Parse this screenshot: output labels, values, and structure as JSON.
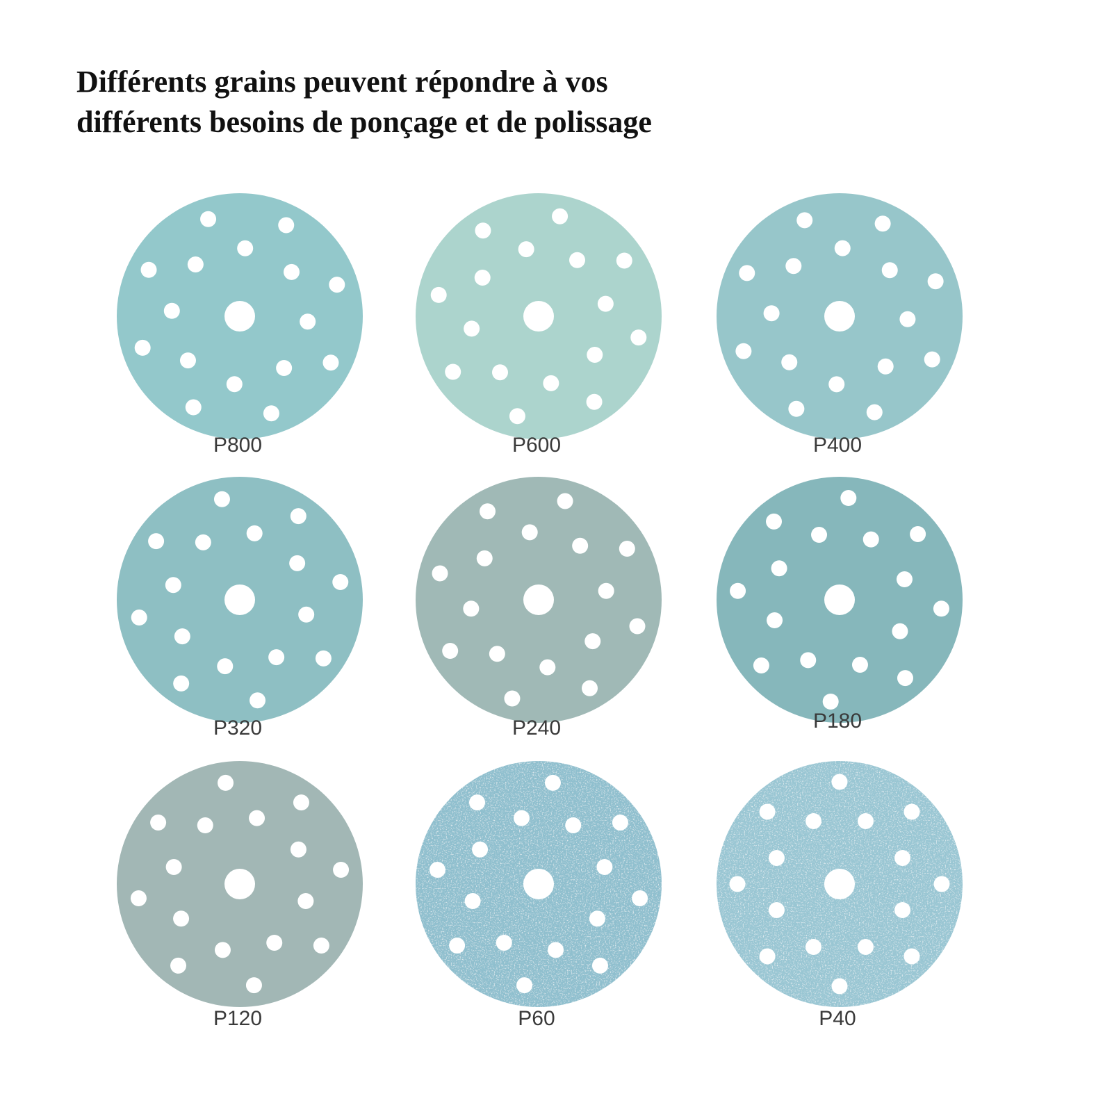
{
  "title": {
    "lines": [
      "Différents grains peuvent répondre à vos",
      "différents besoins de ponçage et de polissage"
    ]
  },
  "discs": [
    {
      "label": "P800"
    },
    {
      "label": "P600"
    },
    {
      "label": "P400"
    },
    {
      "label": "P320"
    },
    {
      "label": "P240"
    },
    {
      "label": "P180"
    },
    {
      "label": "P120"
    },
    {
      "label": "P60"
    },
    {
      "label": "P40"
    }
  ]
}
